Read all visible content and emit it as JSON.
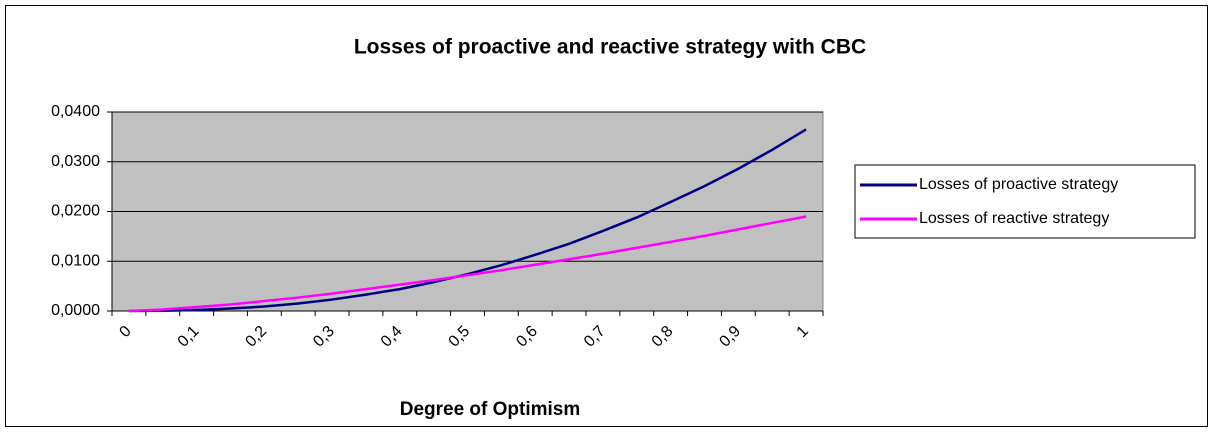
{
  "chart_data": {
    "type": "line",
    "title": "Losses of proactive and reactive strategy with CBC",
    "x_label": "Degree of Optimism",
    "categories": [
      "0",
      null,
      "0,1",
      null,
      "0,2",
      null,
      "0,3",
      null,
      "0,4",
      null,
      "0,5",
      null,
      "0,6",
      null,
      "0,7",
      null,
      "0,8",
      null,
      "0,9",
      null,
      "1"
    ],
    "series": [
      {
        "name": "Losses of proactive strategy",
        "color": "#000080",
        "values": [
          0,
          4e-05,
          0.0002,
          0.0005,
          0.0009,
          0.0015,
          0.0023,
          0.0033,
          0.0044,
          0.0058,
          0.0074,
          0.0092,
          0.0113,
          0.0135,
          0.0161,
          0.0188,
          0.0219,
          0.0251,
          0.0286,
          0.0324,
          0.0365
        ]
      },
      {
        "name": "Losses of reactive strategy",
        "color": "#ff00ff",
        "values": [
          0,
          0.0003,
          0.0008,
          0.0013,
          0.002,
          0.0027,
          0.0035,
          0.0044,
          0.0053,
          0.0062,
          0.0072,
          0.0082,
          0.0093,
          0.0104,
          0.0115,
          0.0127,
          0.0139,
          0.0151,
          0.0164,
          0.0177,
          0.019
        ]
      }
    ],
    "ylim": [
      0,
      0.04
    ],
    "yticks": [
      {
        "value": 0,
        "label": "0,0000"
      },
      {
        "value": 0.01,
        "label": "0,0100"
      },
      {
        "value": 0.02,
        "label": "0,0200"
      },
      {
        "value": 0.03,
        "label": "0,0300"
      },
      {
        "value": 0.04,
        "label": "0,0400"
      }
    ],
    "grid": true,
    "legend": "right",
    "plot_background": "#c0c0c0"
  }
}
